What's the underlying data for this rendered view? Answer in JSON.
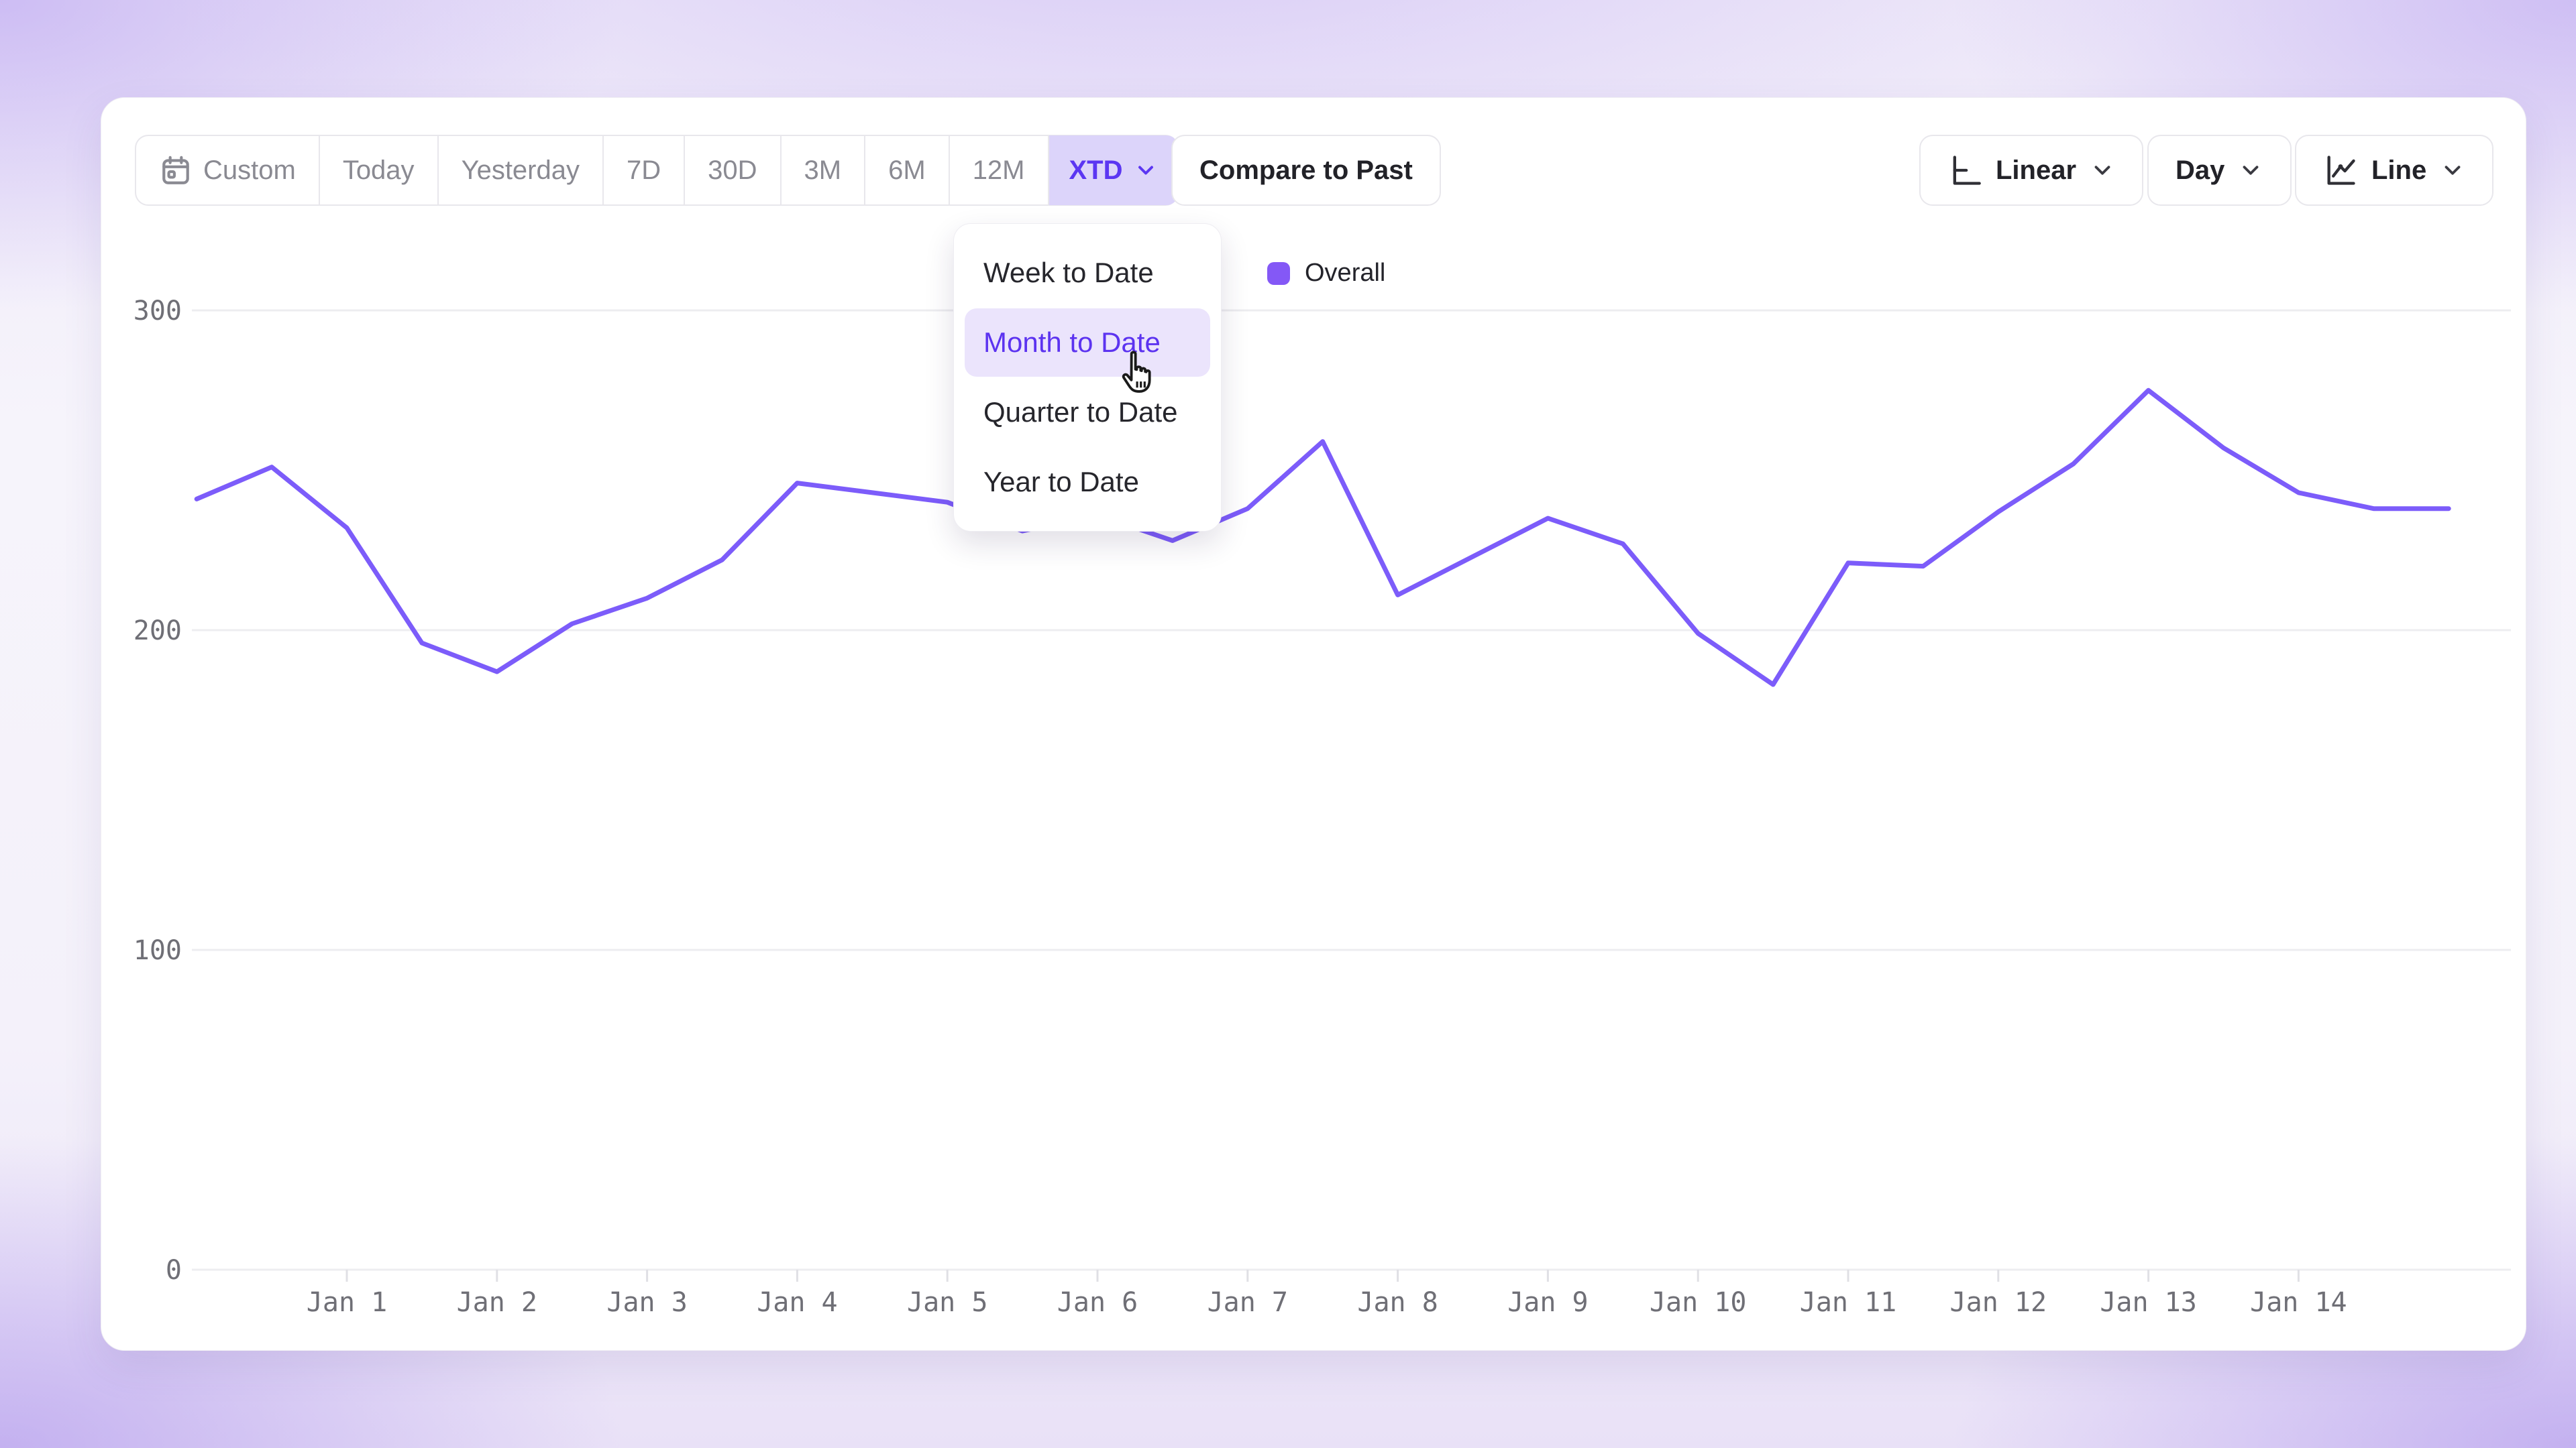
{
  "toolbar": {
    "date_ranges": [
      "Custom",
      "Today",
      "Yesterday",
      "7D",
      "30D",
      "3M",
      "6M",
      "12M",
      "XTD"
    ],
    "active_range": "XTD",
    "compare_label": "Compare to Past",
    "scale_label": "Linear",
    "granularity_label": "Day",
    "chart_type_label": "Line"
  },
  "dropdown": {
    "items": [
      "Week to Date",
      "Month to Date",
      "Quarter to Date",
      "Year to Date"
    ],
    "highlighted": "Month to Date"
  },
  "legend": {
    "label": "Overall",
    "color": "#8458f6"
  },
  "colors": {
    "line": "#7c5cfa",
    "accent_text": "#5b36f2",
    "accent_bg": "#dcd4fa",
    "highlight_bg": "#ebe4fc",
    "gridline": "#ededf0",
    "axis_label": "#6f6f76"
  },
  "chart_data": {
    "type": "line",
    "title": "",
    "xlabel": "",
    "ylabel": "",
    "categories": [
      "Jan 1",
      "Jan 2",
      "Jan 3",
      "Jan 4",
      "Jan 5",
      "Jan 6",
      "Jan 7",
      "Jan 8",
      "Jan 9",
      "Jan 10",
      "Jan 11",
      "Jan 12",
      "Jan 13",
      "Jan 14"
    ],
    "yticks": [
      0,
      100,
      200,
      300
    ],
    "ylim": [
      0,
      310
    ],
    "grid": true,
    "legend_position": "top-center",
    "series": [
      {
        "name": "Overall",
        "color": "#7c5cfa",
        "x_days_from_jan1": [
          -1.0,
          -0.5,
          0.0,
          0.5,
          1.0,
          1.5,
          2.0,
          2.5,
          3.0,
          3.5,
          4.0,
          4.5,
          5.0,
          5.5,
          6.0,
          6.5,
          7.0,
          7.5,
          8.0,
          8.5,
          9.0,
          9.5,
          10.0,
          10.5,
          11.0,
          11.5,
          12.0,
          12.5,
          13.0,
          13.5,
          14.0
        ],
        "values": [
          241,
          251,
          232,
          196,
          187,
          202,
          210,
          222,
          246,
          243,
          240,
          231,
          236,
          228,
          238,
          259,
          211,
          223,
          235,
          227,
          199,
          183,
          221,
          220,
          237,
          252,
          275,
          257,
          243,
          238,
          238
        ]
      }
    ]
  }
}
